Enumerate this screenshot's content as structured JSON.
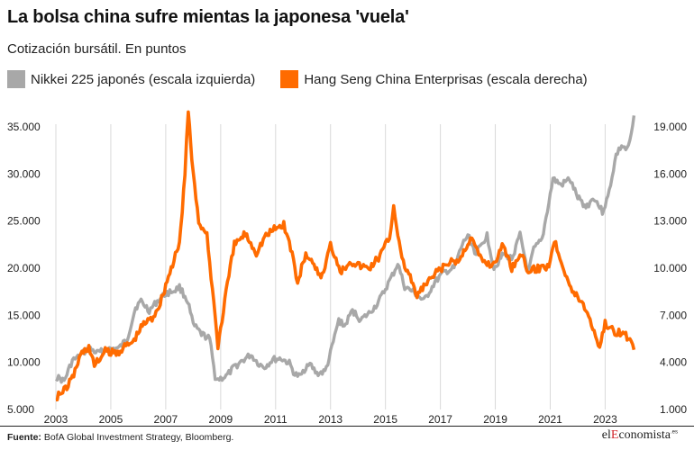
{
  "header": {
    "title": "La bolsa china sufre mientas la japonesa 'vuela'",
    "subtitle": "Cotización bursátil. En puntos"
  },
  "footer": {
    "source_label": "Fuente:",
    "source_text": " BofA Global Investment Strategy, Bloomberg.",
    "brand_prefix": "el",
    "brand_accent": "E",
    "brand_suffix": "conomista",
    "brand_tld": ".es"
  },
  "colors": {
    "nikkei": "#a8a8a8",
    "hscei": "#ff6b00",
    "grid": "#d9d9d9",
    "brand_accent": "#d2232a"
  },
  "chart_data": {
    "type": "line",
    "title": "La bolsa china sufre mientas la japonesa 'vuela'",
    "subtitle": "Cotización bursátil. En puntos",
    "x_axis": {
      "range": [
        2003,
        2024.2
      ],
      "ticks": [
        2003,
        2005,
        2007,
        2009,
        2011,
        2013,
        2015,
        2017,
        2019,
        2021,
        2023
      ]
    },
    "y_left": {
      "range": [
        5000,
        37000
      ],
      "ticks": [
        5000,
        10000,
        15000,
        20000,
        25000,
        30000,
        35000
      ],
      "tick_labels": [
        "5.000",
        "10.000",
        "15.000",
        "20.000",
        "25.000",
        "30.000",
        "35.000"
      ]
    },
    "y_right": {
      "range": [
        1000,
        20200
      ],
      "ticks": [
        1000,
        4000,
        7000,
        10000,
        13000,
        16000,
        19000
      ],
      "tick_labels": [
        "1.000",
        "4.000",
        "7.000",
        "10.000",
        "13.000",
        "16.000",
        "19.000"
      ]
    },
    "grid": "vertical",
    "legend_position": "top-left",
    "series": [
      {
        "name": "Nikkei 225 japonés (escala izquierda)",
        "axis": "left",
        "x": [
          2003.0,
          2003.3,
          2003.6,
          2003.8,
          2004.2,
          2004.5,
          2004.9,
          2005.3,
          2005.6,
          2005.9,
          2006.1,
          2006.4,
          2006.7,
          2007.0,
          2007.3,
          2007.5,
          2007.8,
          2008.0,
          2008.3,
          2008.6,
          2008.8,
          2008.9,
          2009.2,
          2009.5,
          2009.8,
          2010.1,
          2010.4,
          2010.6,
          2010.9,
          2011.2,
          2011.5,
          2011.7,
          2011.9,
          2012.2,
          2012.5,
          2012.8,
          2012.95,
          2013.3,
          2013.5,
          2013.8,
          2014.1,
          2014.4,
          2014.7,
          2014.95,
          2015.3,
          2015.45,
          2015.7,
          2016.0,
          2016.4,
          2016.8,
          2017.1,
          2017.5,
          2017.8,
          2018.0,
          2018.3,
          2018.7,
          2018.95,
          2019.3,
          2019.6,
          2019.9,
          2020.2,
          2020.4,
          2020.7,
          2020.95,
          2021.1,
          2021.4,
          2021.7,
          2022.0,
          2022.3,
          2022.6,
          2022.9,
          2023.1,
          2023.4,
          2023.6,
          2023.8,
          2023.95,
          2024.05
        ],
        "values": [
          8500,
          8000,
          10200,
          10500,
          11500,
          11000,
          11400,
          11500,
          12500,
          15800,
          16500,
          15500,
          16500,
          17300,
          17600,
          18000,
          16500,
          14000,
          13000,
          12500,
          8500,
          8200,
          8500,
          9500,
          10200,
          10800,
          9800,
          9500,
          10300,
          10400,
          9900,
          8700,
          8500,
          10000,
          8800,
          9000,
          10400,
          14500,
          13800,
          15500,
          14500,
          15200,
          16200,
          17500,
          19500,
          20500,
          18000,
          17500,
          16500,
          18500,
          19500,
          20000,
          22500,
          23500,
          21500,
          23500,
          20000,
          21500,
          21000,
          23500,
          19500,
          22000,
          23000,
          27000,
          29500,
          28800,
          29500,
          27500,
          26500,
          27500,
          26000,
          27500,
          32000,
          33000,
          32500,
          34000,
          36200
        ]
      },
      {
        "name": "Hang Seng China Enterprisas (escala derecha)",
        "axis": "right",
        "x": [
          2003.0,
          2003.3,
          2003.6,
          2003.9,
          2004.2,
          2004.4,
          2004.8,
          2005.2,
          2005.5,
          2005.8,
          2006.2,
          2006.5,
          2006.8,
          2007.1,
          2007.3,
          2007.5,
          2007.7,
          2007.82,
          2007.95,
          2008.2,
          2008.5,
          2008.8,
          2008.9,
          2009.2,
          2009.5,
          2009.9,
          2010.3,
          2010.6,
          2010.95,
          2011.3,
          2011.6,
          2011.8,
          2012.1,
          2012.4,
          2012.7,
          2013.0,
          2013.4,
          2013.7,
          2014.0,
          2014.4,
          2014.8,
          2015.15,
          2015.3,
          2015.6,
          2015.9,
          2016.1,
          2016.5,
          2016.9,
          2017.3,
          2017.7,
          2018.1,
          2018.5,
          2018.9,
          2019.3,
          2019.6,
          2019.9,
          2020.2,
          2020.6,
          2020.95,
          2021.15,
          2021.5,
          2021.8,
          2022.1,
          2022.4,
          2022.8,
          2023.0,
          2023.3,
          2023.6,
          2023.9,
          2024.05
        ],
        "values": [
          1800,
          2200,
          3000,
          4500,
          5000,
          3800,
          4700,
          4600,
          5000,
          5300,
          6500,
          6800,
          7800,
          9500,
          10500,
          11500,
          16000,
          20000,
          17000,
          13000,
          12000,
          7000,
          5000,
          8500,
          11500,
          12200,
          11000,
          12000,
          12500,
          12800,
          11000,
          9000,
          11000,
          10000,
          9500,
          11500,
          9800,
          10500,
          10200,
          10000,
          10800,
          12000,
          14000,
          10500,
          9500,
          8200,
          9000,
          9800,
          10300,
          10500,
          12000,
          10500,
          10200,
          11500,
          10000,
          11000,
          9800,
          10000,
          10200,
          11800,
          10000,
          8500,
          8000,
          7000,
          5000,
          6500,
          6000,
          5900,
          5500,
          4800
        ]
      }
    ]
  }
}
